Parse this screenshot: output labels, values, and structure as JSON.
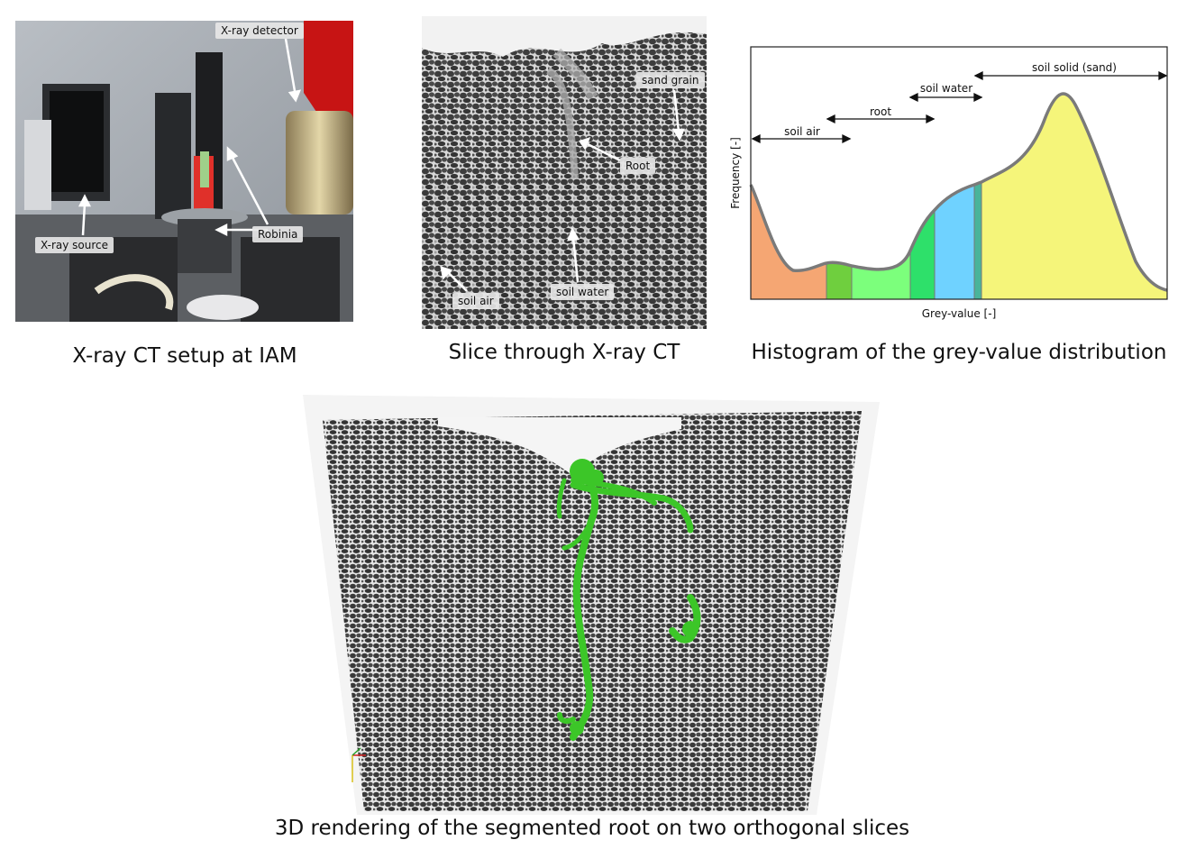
{
  "photo": {
    "caption": "X-ray CT setup at IAM",
    "labels": {
      "detector": "X-ray detector",
      "source": "X-ray source",
      "plant": "Robinia"
    }
  },
  "slice": {
    "caption": "Slice through X-ray CT",
    "labels": {
      "sand": "sand grain",
      "root": "Root",
      "air": "soil air",
      "water": "soil water"
    }
  },
  "histogram": {
    "caption": "Histogram of the grey-value distribution",
    "ylabel": "Frequency [-]",
    "xlabel": "Grey-value [-]",
    "ranges": {
      "air": "soil air",
      "root": "root",
      "water": "soil water",
      "solid": "soil solid (sand)"
    },
    "colors": {
      "air": "#f5a673",
      "root_a": "#6fcf3e",
      "root_b": "#7cff7c",
      "water_a": "#2ee06a",
      "water_b": "#6fd2ff",
      "mix": "#49b49a",
      "solid": "#f5f57a"
    }
  },
  "render": {
    "caption": "3D rendering of the segmented root on two orthogonal slices",
    "root_color": "#3cc628"
  }
}
